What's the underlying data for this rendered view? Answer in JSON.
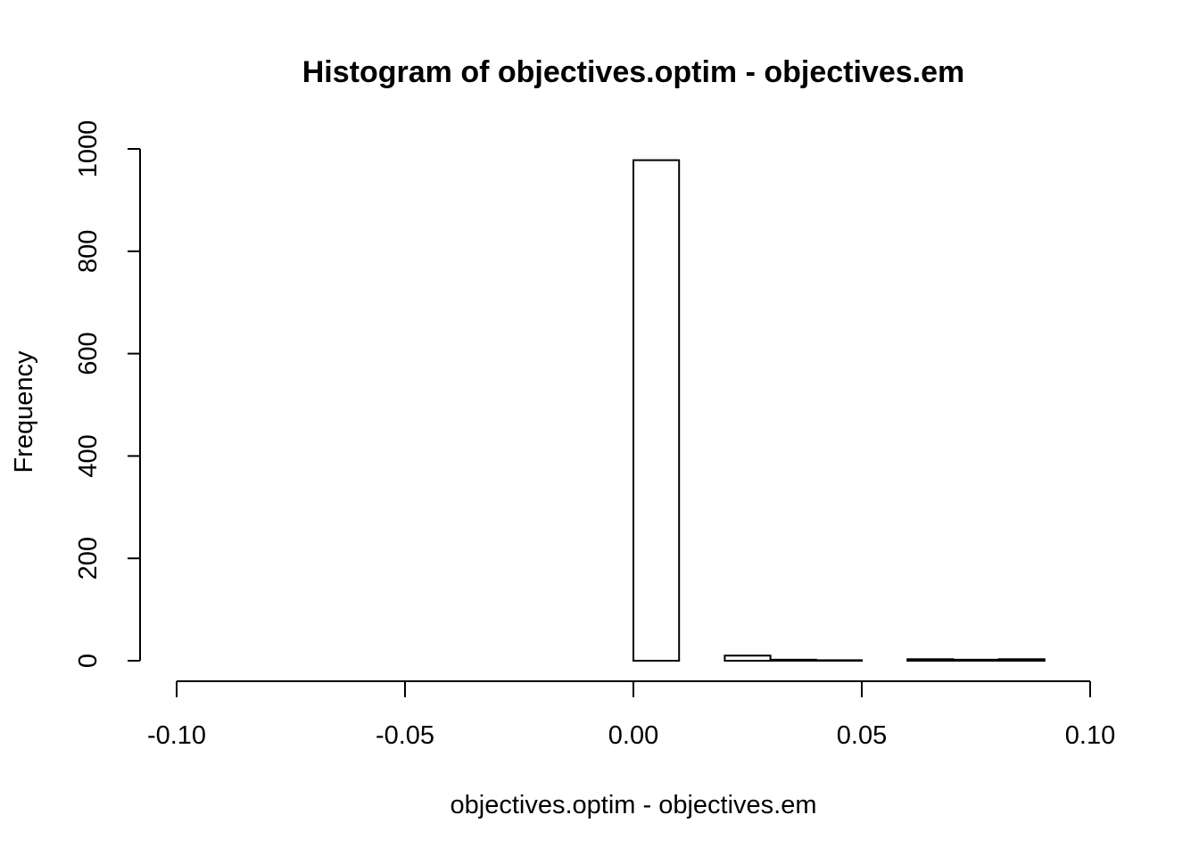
{
  "chart_data": {
    "type": "bar",
    "title": "Histogram of objectives.optim - objectives.em",
    "xlabel": "objectives.optim - objectives.em",
    "ylabel": "Frequency",
    "xlim": [
      -0.108,
      0.108
    ],
    "ylim": [
      0,
      1040
    ],
    "x_ticks": [
      -0.1,
      -0.05,
      0.0,
      0.05,
      0.1
    ],
    "x_tick_labels": [
      "-0.10",
      "-0.05",
      "0.00",
      "0.05",
      "0.10"
    ],
    "y_ticks": [
      0,
      200,
      400,
      600,
      800,
      1000
    ],
    "y_tick_labels": [
      "0",
      "200",
      "400",
      "600",
      "800",
      "1000"
    ],
    "bins": [
      {
        "start": 0.0,
        "end": 0.01,
        "count": 978
      },
      {
        "start": 0.01,
        "end": 0.02,
        "count": 0
      },
      {
        "start": 0.02,
        "end": 0.03,
        "count": 10
      },
      {
        "start": 0.03,
        "end": 0.04,
        "count": 2
      },
      {
        "start": 0.04,
        "end": 0.05,
        "count": 1
      },
      {
        "start": 0.05,
        "end": 0.06,
        "count": 0
      },
      {
        "start": 0.06,
        "end": 0.07,
        "count": 3
      },
      {
        "start": 0.07,
        "end": 0.08,
        "count": 2
      },
      {
        "start": 0.08,
        "end": 0.09,
        "count": 3
      },
      {
        "start": 0.09,
        "end": 0.1,
        "count": 0
      },
      {
        "start": 0.1,
        "end": 0.108,
        "count": 0
      }
    ],
    "grid": false,
    "legend": "none"
  }
}
